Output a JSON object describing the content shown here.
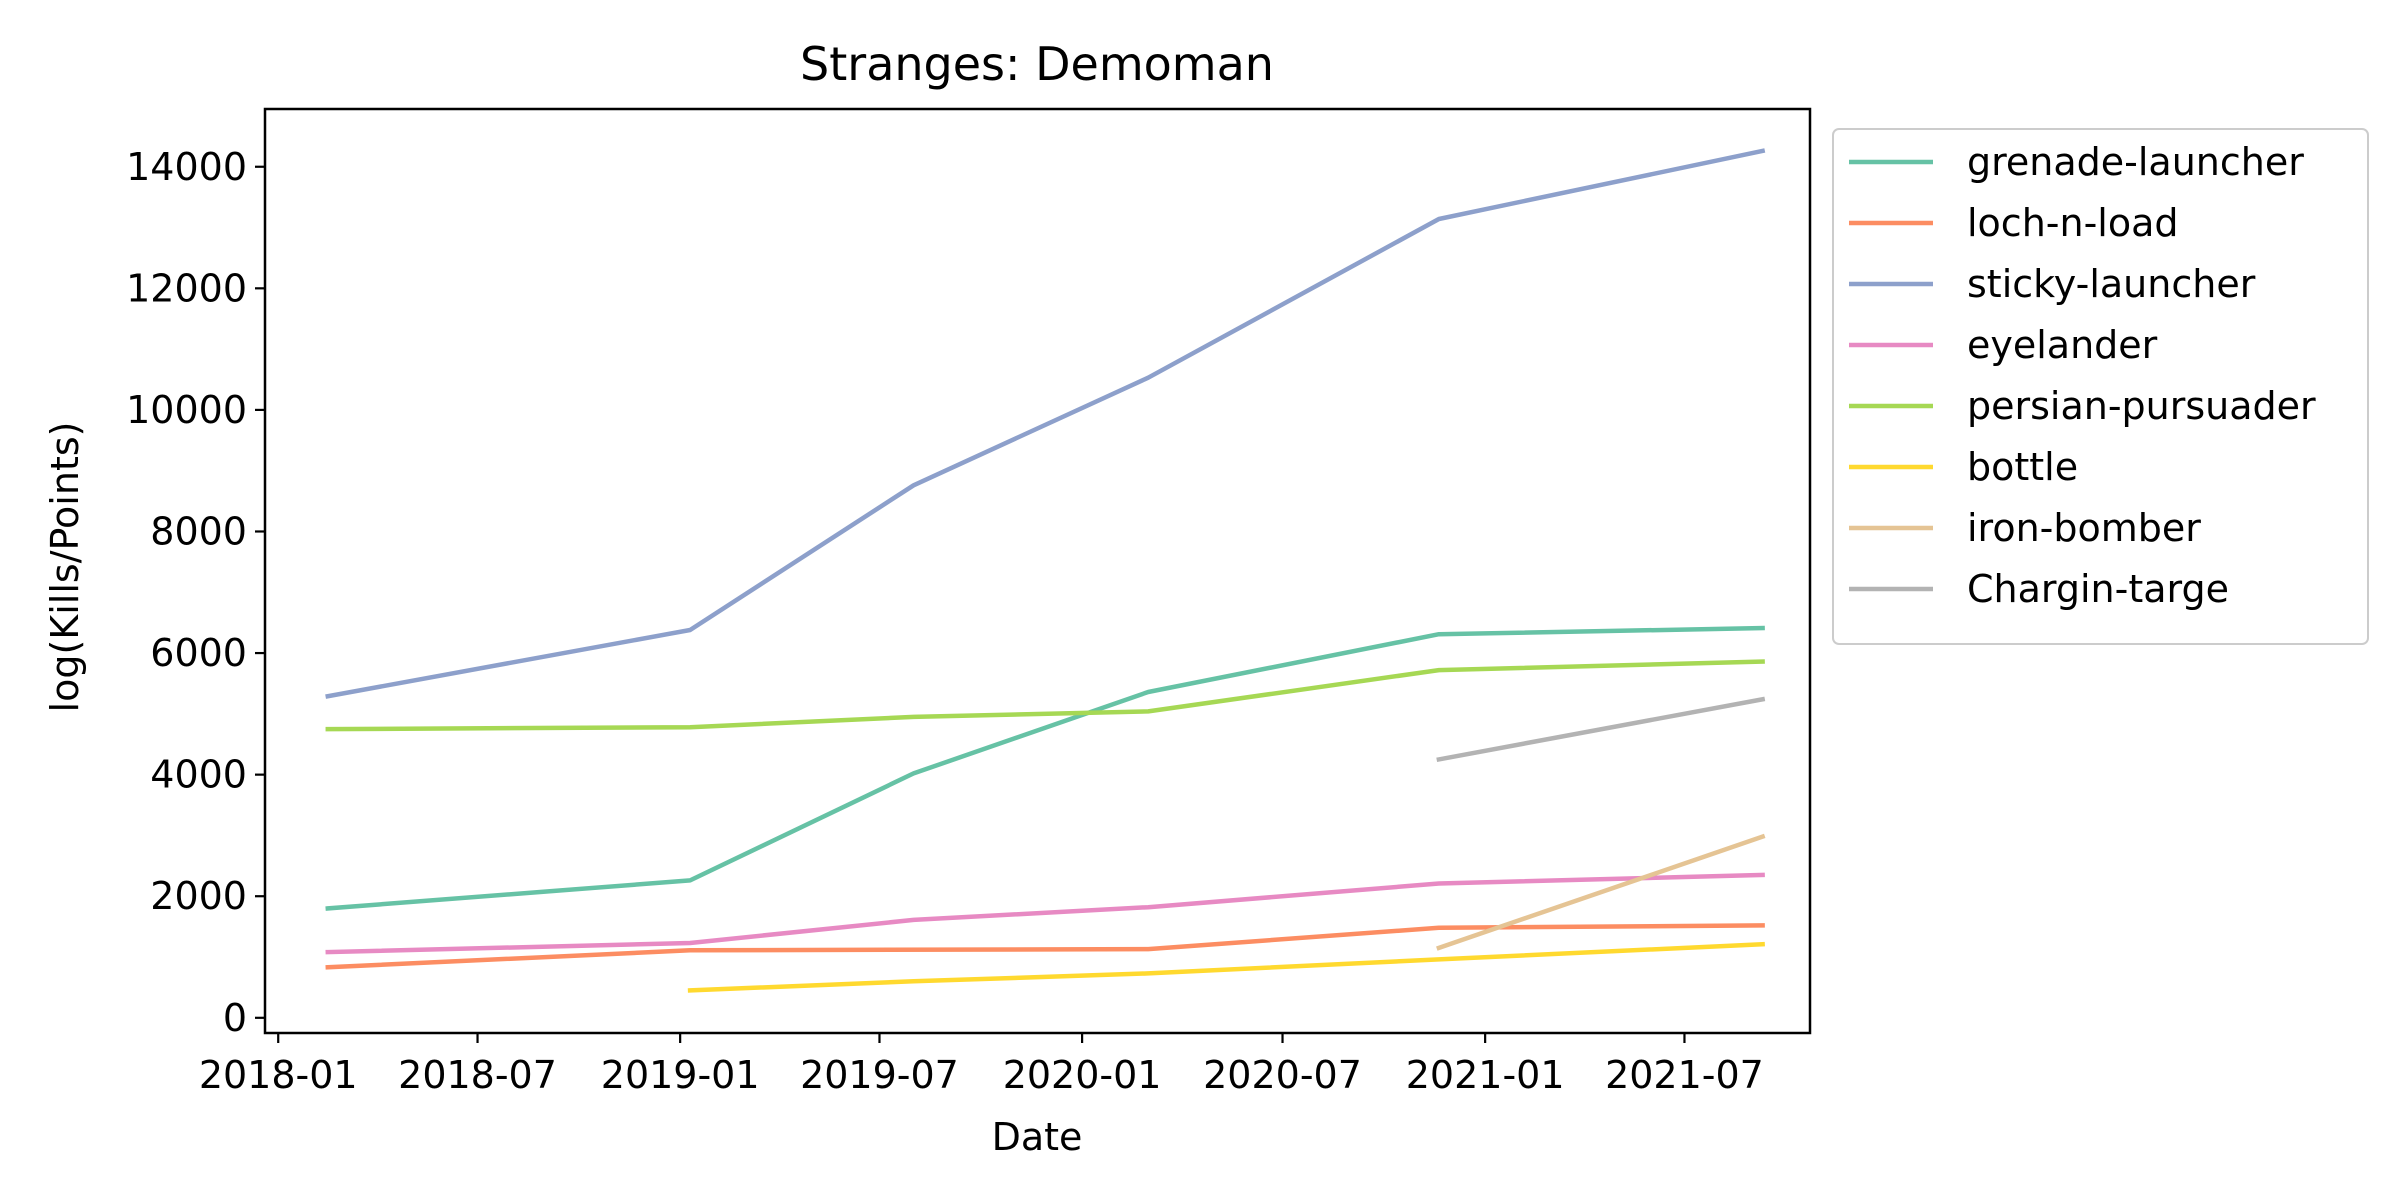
{
  "chart_data": {
    "type": "line",
    "title": "Stranges: Demoman",
    "xlabel": "Date",
    "ylabel": "log(Kills/Points)",
    "xlim": [
      "2017-12-20",
      "2021-10-23"
    ],
    "ylim": [
      -250,
      14950
    ],
    "x_ticks": [
      "2018-01",
      "2018-07",
      "2019-01",
      "2019-07",
      "2020-01",
      "2020-07",
      "2021-01",
      "2021-07"
    ],
    "y_ticks": [
      0,
      2000,
      4000,
      6000,
      8000,
      10000,
      12000,
      14000
    ],
    "grid": false,
    "legend_position": "outside-right-top",
    "series": [
      {
        "name": "grenade-launcher",
        "color": "#66c2a5",
        "points": [
          {
            "x": "2018-02-15",
            "y": 1800
          },
          {
            "x": "2019-01-10",
            "y": 2260
          },
          {
            "x": "2019-08-01",
            "y": 4020
          },
          {
            "x": "2020-03-01",
            "y": 5360
          },
          {
            "x": "2020-11-20",
            "y": 6310
          },
          {
            "x": "2021-09-10",
            "y": 6410
          }
        ]
      },
      {
        "name": "loch-n-load",
        "color": "#fc8d62",
        "points": [
          {
            "x": "2018-02-15",
            "y": 830
          },
          {
            "x": "2019-01-10",
            "y": 1110
          },
          {
            "x": "2020-03-01",
            "y": 1130
          },
          {
            "x": "2020-11-20",
            "y": 1480
          },
          {
            "x": "2021-09-10",
            "y": 1520
          }
        ]
      },
      {
        "name": "sticky-launcher",
        "color": "#8da0cb",
        "points": [
          {
            "x": "2018-02-15",
            "y": 5290
          },
          {
            "x": "2019-01-10",
            "y": 6380
          },
          {
            "x": "2019-08-01",
            "y": 8760
          },
          {
            "x": "2020-03-01",
            "y": 10530
          },
          {
            "x": "2020-11-20",
            "y": 13140
          },
          {
            "x": "2021-09-10",
            "y": 14260
          }
        ]
      },
      {
        "name": "eyelander",
        "color": "#e78ac3",
        "points": [
          {
            "x": "2018-02-15",
            "y": 1080
          },
          {
            "x": "2019-01-10",
            "y": 1230
          },
          {
            "x": "2019-08-01",
            "y": 1610
          },
          {
            "x": "2020-03-01",
            "y": 1820
          },
          {
            "x": "2020-11-20",
            "y": 2210
          },
          {
            "x": "2021-09-10",
            "y": 2350
          }
        ]
      },
      {
        "name": "persian-pursuader",
        "color": "#a6d854",
        "points": [
          {
            "x": "2018-02-15",
            "y": 4750
          },
          {
            "x": "2019-01-10",
            "y": 4780
          },
          {
            "x": "2019-08-01",
            "y": 4950
          },
          {
            "x": "2020-03-01",
            "y": 5040
          },
          {
            "x": "2020-11-20",
            "y": 5720
          },
          {
            "x": "2021-09-10",
            "y": 5860
          }
        ]
      },
      {
        "name": "bottle",
        "color": "#ffd92f",
        "points": [
          {
            "x": "2019-01-10",
            "y": 450
          },
          {
            "x": "2019-08-01",
            "y": 600
          },
          {
            "x": "2020-03-01",
            "y": 730
          },
          {
            "x": "2020-11-20",
            "y": 960
          },
          {
            "x": "2021-09-10",
            "y": 1210
          }
        ]
      },
      {
        "name": "iron-bomber",
        "color": "#e5c494",
        "points": [
          {
            "x": "2020-11-20",
            "y": 1150
          },
          {
            "x": "2021-09-10",
            "y": 2980
          }
        ]
      },
      {
        "name": "Chargin-targe",
        "color": "#b3b3b3",
        "points": [
          {
            "x": "2020-11-20",
            "y": 4250
          },
          {
            "x": "2021-09-10",
            "y": 5240
          }
        ]
      }
    ]
  }
}
